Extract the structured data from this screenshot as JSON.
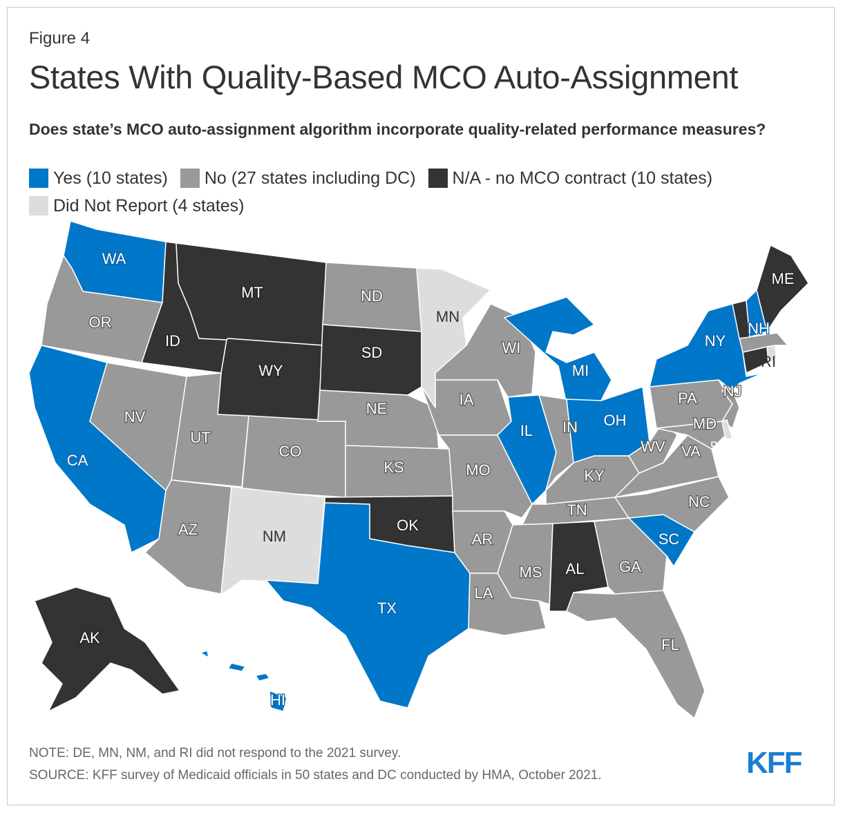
{
  "figure_label": "Figure 4",
  "title": "States With Quality-Based MCO Auto-Assignment",
  "subtitle": "Does state’s MCO auto-assignment algorithm incorporate quality-related performance measures?",
  "legend": [
    {
      "key": "yes",
      "label": "Yes (10 states)",
      "color": "#0077c8"
    },
    {
      "key": "no",
      "label": "No (27 states including DC)",
      "color": "#999999"
    },
    {
      "key": "na",
      "label": "N/A - no MCO contract (10 states)",
      "color": "#333333"
    },
    {
      "key": "dnr",
      "label": "Did Not Report (4 states)",
      "color": "#dddddd"
    }
  ],
  "states": [
    {
      "abbr": "WA",
      "category": "yes"
    },
    {
      "abbr": "OR",
      "category": "no"
    },
    {
      "abbr": "CA",
      "category": "yes"
    },
    {
      "abbr": "NV",
      "category": "no"
    },
    {
      "abbr": "ID",
      "category": "na"
    },
    {
      "abbr": "MT",
      "category": "na"
    },
    {
      "abbr": "WY",
      "category": "na"
    },
    {
      "abbr": "UT",
      "category": "no"
    },
    {
      "abbr": "AZ",
      "category": "no"
    },
    {
      "abbr": "CO",
      "category": "no"
    },
    {
      "abbr": "NM",
      "category": "dnr"
    },
    {
      "abbr": "ND",
      "category": "no"
    },
    {
      "abbr": "SD",
      "category": "na"
    },
    {
      "abbr": "NE",
      "category": "no"
    },
    {
      "abbr": "KS",
      "category": "no"
    },
    {
      "abbr": "OK",
      "category": "na"
    },
    {
      "abbr": "TX",
      "category": "yes"
    },
    {
      "abbr": "MN",
      "category": "dnr"
    },
    {
      "abbr": "IA",
      "category": "no"
    },
    {
      "abbr": "MO",
      "category": "no"
    },
    {
      "abbr": "AR",
      "category": "no"
    },
    {
      "abbr": "LA",
      "category": "no"
    },
    {
      "abbr": "WI",
      "category": "no"
    },
    {
      "abbr": "IL",
      "category": "yes"
    },
    {
      "abbr": "MI",
      "category": "yes"
    },
    {
      "abbr": "IN",
      "category": "no"
    },
    {
      "abbr": "OH",
      "category": "yes"
    },
    {
      "abbr": "KY",
      "category": "no"
    },
    {
      "abbr": "TN",
      "category": "no"
    },
    {
      "abbr": "MS",
      "category": "no"
    },
    {
      "abbr": "AL",
      "category": "na"
    },
    {
      "abbr": "GA",
      "category": "no"
    },
    {
      "abbr": "FL",
      "category": "no"
    },
    {
      "abbr": "SC",
      "category": "yes"
    },
    {
      "abbr": "NC",
      "category": "no"
    },
    {
      "abbr": "VA",
      "category": "no"
    },
    {
      "abbr": "WV",
      "category": "no"
    },
    {
      "abbr": "PA",
      "category": "no"
    },
    {
      "abbr": "NY",
      "category": "yes"
    },
    {
      "abbr": "NJ",
      "category": "no"
    },
    {
      "abbr": "MD",
      "category": "no"
    },
    {
      "abbr": "DE",
      "category": "dnr"
    },
    {
      "abbr": "DC",
      "category": "no"
    },
    {
      "abbr": "CT",
      "category": "na"
    },
    {
      "abbr": "RI",
      "category": "dnr"
    },
    {
      "abbr": "MA",
      "category": "no"
    },
    {
      "abbr": "VT",
      "category": "na"
    },
    {
      "abbr": "NH",
      "category": "yes"
    },
    {
      "abbr": "ME",
      "category": "na"
    },
    {
      "abbr": "AK",
      "category": "na"
    },
    {
      "abbr": "HI",
      "category": "yes"
    }
  ],
  "note": "NOTE: DE, MN, NM, and RI did not respond to the 2021 survey.",
  "source": "SOURCE: KFF survey of Medicaid officials in 50 states and DC conducted by HMA, October 2021.",
  "logo_text": "KFF"
}
